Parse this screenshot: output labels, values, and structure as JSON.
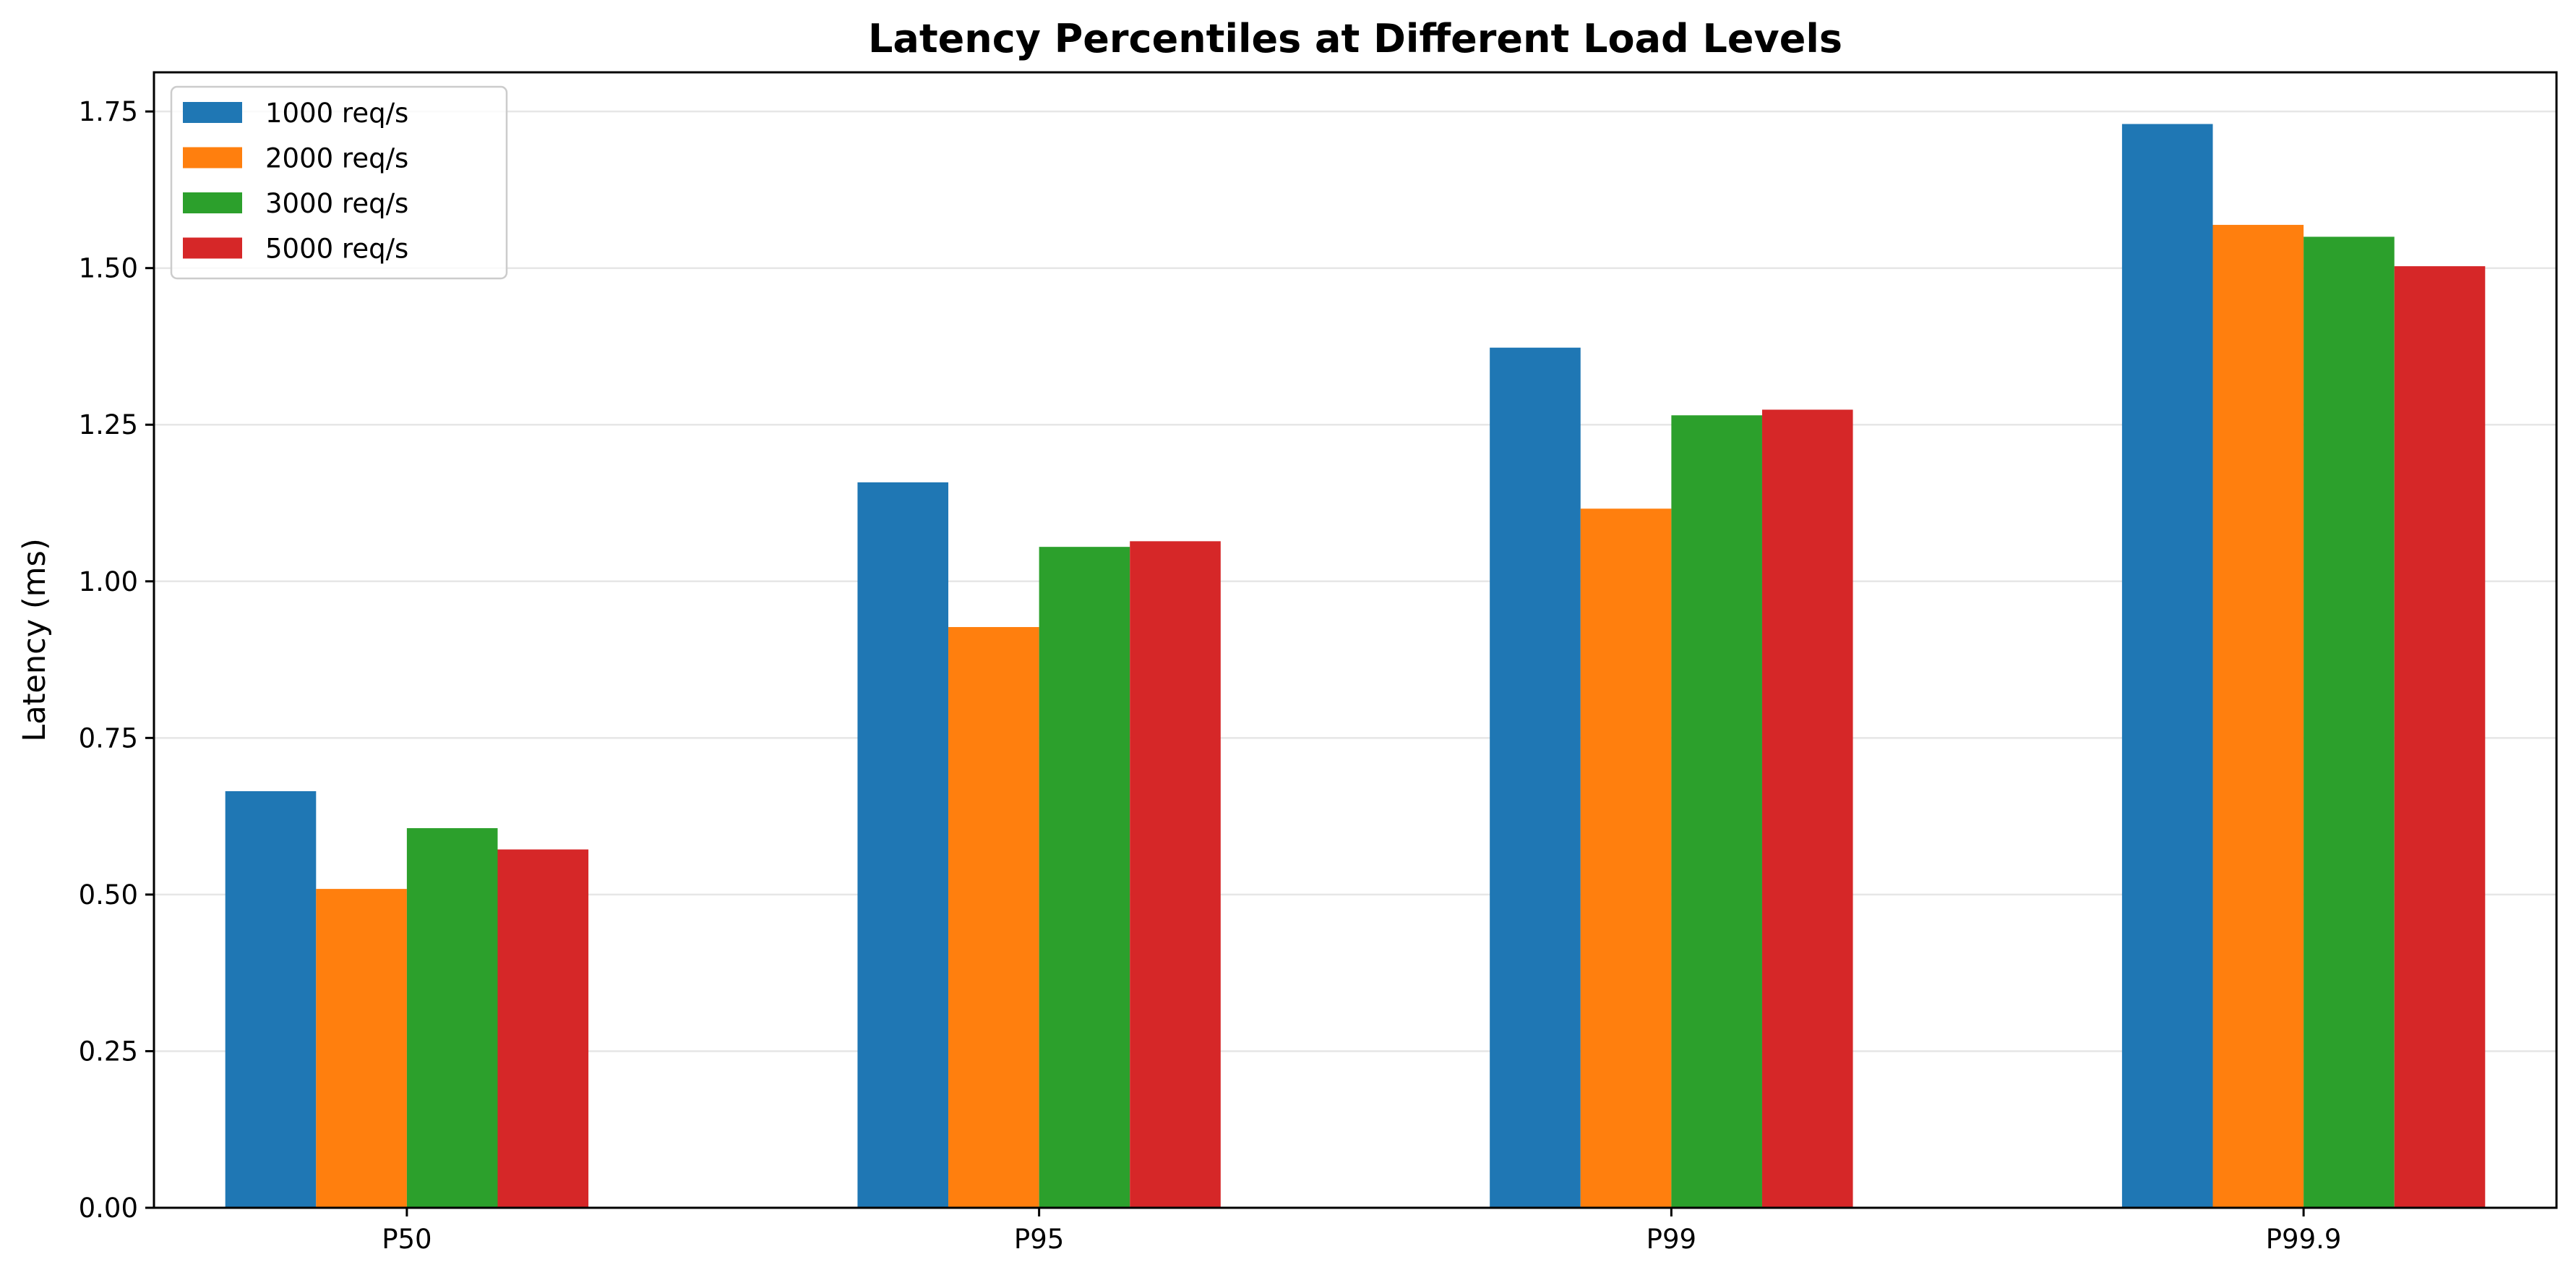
{
  "chart_data": {
    "type": "bar",
    "title": "Latency Percentiles at Different Load Levels",
    "xlabel": "",
    "ylabel": "Latency (ms)",
    "categories": [
      "P50",
      "P95",
      "P99",
      "P99.9"
    ],
    "ylim": [
      0,
      1.8125
    ],
    "yticks": [
      "0.00",
      "0.25",
      "0.50",
      "0.75",
      "1.00",
      "1.25",
      "1.50",
      "1.75"
    ],
    "grid": "horizontal",
    "legend_position": "top-left",
    "series": [
      {
        "name": "1000 req/s",
        "color": "#1f77b4",
        "values": [
          0.665,
          1.158,
          1.373,
          1.73
        ]
      },
      {
        "name": "2000 req/s",
        "color": "#ff7f0e",
        "values": [
          0.509,
          0.927,
          1.116,
          1.569
        ]
      },
      {
        "name": "3000 req/s",
        "color": "#2ca02c",
        "values": [
          0.606,
          1.055,
          1.265,
          1.55
        ]
      },
      {
        "name": "5000 req/s",
        "color": "#d62728",
        "values": [
          0.572,
          1.064,
          1.274,
          1.503
        ]
      }
    ]
  }
}
